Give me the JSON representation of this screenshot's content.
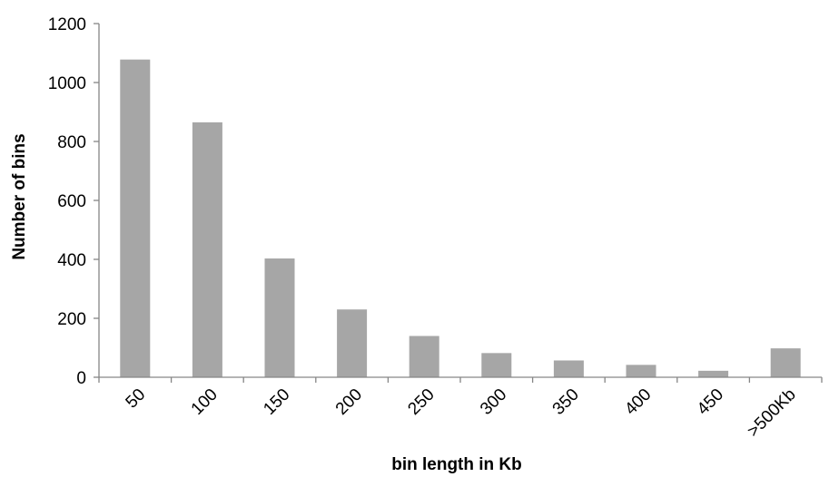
{
  "chart_data": {
    "type": "bar",
    "title": "",
    "xlabel": "bin length in Kb",
    "ylabel": "Number of bins",
    "categories": [
      "50",
      "100",
      "150",
      "200",
      "250",
      "300",
      "350",
      "400",
      "450",
      ">500Kb"
    ],
    "values": [
      1078,
      865,
      403,
      230,
      140,
      82,
      57,
      42,
      22,
      98
    ],
    "ylim": [
      0,
      1200
    ],
    "yticks": [
      0,
      200,
      400,
      600,
      800,
      1000,
      1200
    ],
    "grid": false,
    "legend": "none",
    "bar_color": "#a6a6a6",
    "axis_color": "#868686"
  }
}
